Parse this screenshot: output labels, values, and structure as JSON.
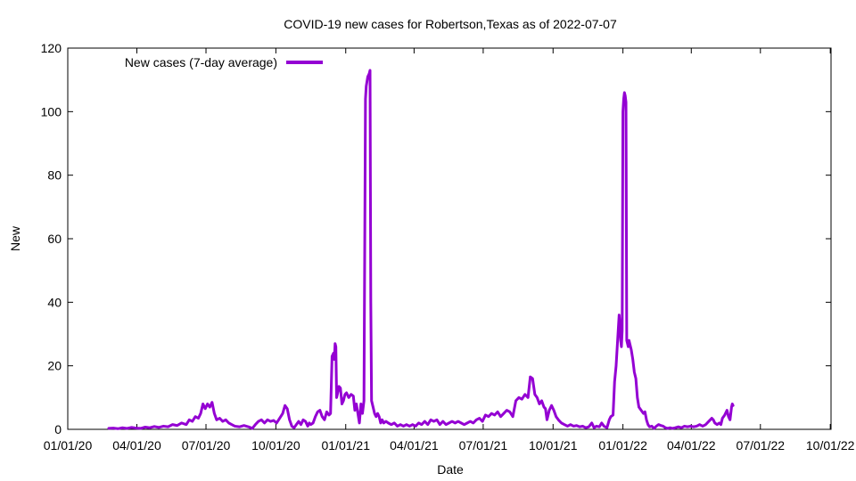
{
  "chart_data": {
    "type": "line",
    "title": "COVID-19 new cases for Robertson,Texas as of 2022-07-07",
    "xlabel": "Date",
    "ylabel": "New",
    "ylim": [
      0,
      120
    ],
    "yticks": [
      0,
      20,
      40,
      60,
      80,
      100,
      120
    ],
    "xlim_days": [
      0,
      1005
    ],
    "xticks": [
      {
        "day": 0,
        "label": "01/01/20"
      },
      {
        "day": 91,
        "label": "04/01/20"
      },
      {
        "day": 182,
        "label": "07/01/20"
      },
      {
        "day": 274,
        "label": "10/01/20"
      },
      {
        "day": 366,
        "label": "01/01/21"
      },
      {
        "day": 456,
        "label": "04/01/21"
      },
      {
        "day": 547,
        "label": "07/01/21"
      },
      {
        "day": 639,
        "label": "10/01/21"
      },
      {
        "day": 731,
        "label": "01/01/22"
      },
      {
        "day": 821,
        "label": "04/01/22"
      },
      {
        "day": 912,
        "label": "07/01/22"
      },
      {
        "day": 1004,
        "label": "10/01/22"
      }
    ],
    "legend": {
      "label": "New cases (7-day average)",
      "position": "top-left"
    },
    "series": [
      {
        "name": "New cases (7-day average)",
        "color": "#9400D3",
        "points": [
          [
            54,
            0.3
          ],
          [
            60,
            0.4
          ],
          [
            66,
            0.2
          ],
          [
            72,
            0.5
          ],
          [
            78,
            0.3
          ],
          [
            84,
            0.6
          ],
          [
            90,
            0.4
          ],
          [
            96,
            0.3
          ],
          [
            102,
            0.7
          ],
          [
            108,
            0.5
          ],
          [
            114,
            0.9
          ],
          [
            120,
            0.6
          ],
          [
            126,
            1.0
          ],
          [
            132,
            0.8
          ],
          [
            138,
            1.5
          ],
          [
            144,
            1.2
          ],
          [
            150,
            2.0
          ],
          [
            156,
            1.5
          ],
          [
            160,
            3.0
          ],
          [
            164,
            2.5
          ],
          [
            168,
            4.0
          ],
          [
            172,
            3.5
          ],
          [
            175,
            5.0
          ],
          [
            178,
            8.0
          ],
          [
            181,
            6.5
          ],
          [
            184,
            8.0
          ],
          [
            187,
            7.0
          ],
          [
            190,
            8.5
          ],
          [
            193,
            5.0
          ],
          [
            196,
            3.0
          ],
          [
            200,
            3.5
          ],
          [
            204,
            2.5
          ],
          [
            208,
            3.0
          ],
          [
            212,
            2.0
          ],
          [
            216,
            1.5
          ],
          [
            220,
            1.0
          ],
          [
            226,
            0.8
          ],
          [
            232,
            1.2
          ],
          [
            238,
            0.8
          ],
          [
            243,
            0.3
          ],
          [
            247,
            1.5
          ],
          [
            251,
            2.5
          ],
          [
            255,
            3.0
          ],
          [
            259,
            2.0
          ],
          [
            263,
            3.0
          ],
          [
            267,
            2.5
          ],
          [
            271,
            2.8
          ],
          [
            275,
            2.0
          ],
          [
            279,
            3.5
          ],
          [
            283,
            5.0
          ],
          [
            286,
            7.5
          ],
          [
            289,
            6.5
          ],
          [
            292,
            3.0
          ],
          [
            295,
            1.0
          ],
          [
            298,
            0.5
          ],
          [
            301,
            1.5
          ],
          [
            304,
            2.5
          ],
          [
            307,
            1.5
          ],
          [
            310,
            3.0
          ],
          [
            313,
            2.5
          ],
          [
            316,
            1.0
          ],
          [
            318,
            2.0
          ],
          [
            320,
            1.5
          ],
          [
            323,
            2.0
          ],
          [
            326,
            4.0
          ],
          [
            329,
            5.5
          ],
          [
            332,
            6.0
          ],
          [
            335,
            4.0
          ],
          [
            338,
            3.0
          ],
          [
            341,
            5.5
          ],
          [
            344,
            4.5
          ],
          [
            346,
            5.0
          ],
          [
            348,
            23.0
          ],
          [
            350,
            24.0
          ],
          [
            351,
            22.0
          ],
          [
            352,
            27.0
          ],
          [
            353,
            26.0
          ],
          [
            354,
            10.0
          ],
          [
            355,
            11.0
          ],
          [
            357,
            13.5
          ],
          [
            359,
            13.0
          ],
          [
            361,
            8.0
          ],
          [
            363,
            9.0
          ],
          [
            365,
            11.0
          ],
          [
            367,
            11.5
          ],
          [
            370,
            10.0
          ],
          [
            373,
            11.0
          ],
          [
            376,
            10.5
          ],
          [
            378,
            6.0
          ],
          [
            380,
            8.0
          ],
          [
            382,
            5.0
          ],
          [
            384,
            2.0
          ],
          [
            386,
            8.0
          ],
          [
            388,
            5.0
          ],
          [
            390,
            9.0
          ],
          [
            392,
            104.0
          ],
          [
            393,
            108.0
          ],
          [
            395,
            111.0
          ],
          [
            397,
            112.0
          ],
          [
            398,
            113.0
          ],
          [
            399,
            40.0
          ],
          [
            400,
            9.0
          ],
          [
            402,
            7.0
          ],
          [
            404,
            5.0
          ],
          [
            406,
            4.0
          ],
          [
            408,
            5.0
          ],
          [
            410,
            4.0
          ],
          [
            412,
            2.0
          ],
          [
            414,
            3.0
          ],
          [
            416,
            2.0
          ],
          [
            419,
            2.5
          ],
          [
            422,
            2.0
          ],
          [
            426,
            1.5
          ],
          [
            430,
            2.0
          ],
          [
            434,
            1.0
          ],
          [
            438,
            1.5
          ],
          [
            442,
            1.0
          ],
          [
            446,
            1.5
          ],
          [
            450,
            1.0
          ],
          [
            454,
            1.5
          ],
          [
            458,
            1.0
          ],
          [
            462,
            2.0
          ],
          [
            466,
            1.5
          ],
          [
            470,
            2.5
          ],
          [
            474,
            1.5
          ],
          [
            478,
            3.0
          ],
          [
            482,
            2.5
          ],
          [
            486,
            3.0
          ],
          [
            490,
            1.5
          ],
          [
            494,
            2.5
          ],
          [
            498,
            1.5
          ],
          [
            502,
            2.0
          ],
          [
            506,
            2.5
          ],
          [
            510,
            2.0
          ],
          [
            514,
            2.5
          ],
          [
            518,
            2.0
          ],
          [
            522,
            1.5
          ],
          [
            526,
            2.0
          ],
          [
            530,
            2.5
          ],
          [
            534,
            2.0
          ],
          [
            538,
            3.0
          ],
          [
            542,
            3.5
          ],
          [
            546,
            2.5
          ],
          [
            550,
            4.5
          ],
          [
            554,
            4.0
          ],
          [
            558,
            5.0
          ],
          [
            562,
            4.5
          ],
          [
            566,
            5.5
          ],
          [
            570,
            4.0
          ],
          [
            574,
            5.0
          ],
          [
            578,
            6.0
          ],
          [
            582,
            5.5
          ],
          [
            586,
            4.0
          ],
          [
            590,
            9.0
          ],
          [
            594,
            10.0
          ],
          [
            598,
            9.5
          ],
          [
            602,
            11.0
          ],
          [
            606,
            10.0
          ],
          [
            609,
            16.5
          ],
          [
            612,
            16.0
          ],
          [
            615,
            11.0
          ],
          [
            618,
            10.0
          ],
          [
            621,
            8.0
          ],
          [
            624,
            9.0
          ],
          [
            627,
            7.0
          ],
          [
            629,
            6.5
          ],
          [
            631,
            3.0
          ],
          [
            634,
            6.0
          ],
          [
            637,
            7.5
          ],
          [
            640,
            6.0
          ],
          [
            643,
            4.0
          ],
          [
            646,
            3.0
          ],
          [
            650,
            2.0
          ],
          [
            654,
            1.5
          ],
          [
            658,
            1.0
          ],
          [
            662,
            1.5
          ],
          [
            666,
            1.0
          ],
          [
            670,
            1.2
          ],
          [
            674,
            0.8
          ],
          [
            678,
            1.0
          ],
          [
            682,
            0.5
          ],
          [
            686,
            0.8
          ],
          [
            690,
            2.0
          ],
          [
            693,
            0.5
          ],
          [
            696,
            1.0
          ],
          [
            700,
            0.8
          ],
          [
            703,
            2.0
          ],
          [
            706,
            1.0
          ],
          [
            710,
            0.5
          ],
          [
            713,
            3.0
          ],
          [
            715,
            4.0
          ],
          [
            718,
            4.5
          ],
          [
            720,
            15.0
          ],
          [
            722,
            20.0
          ],
          [
            724,
            28.0
          ],
          [
            726,
            36.0
          ],
          [
            727,
            33.0
          ],
          [
            728,
            28.0
          ],
          [
            729,
            26.0
          ],
          [
            730,
            31.0
          ],
          [
            731,
            100.0
          ],
          [
            732,
            104.0
          ],
          [
            733,
            106.0
          ],
          [
            734,
            105.0
          ],
          [
            735,
            103.0
          ],
          [
            736,
            28.0
          ],
          [
            737,
            27.0
          ],
          [
            738,
            26.0
          ],
          [
            739,
            28.0
          ],
          [
            740,
            27.0
          ],
          [
            742,
            25.0
          ],
          [
            744,
            22.0
          ],
          [
            746,
            18.0
          ],
          [
            748,
            16.0
          ],
          [
            750,
            10.0
          ],
          [
            752,
            7.0
          ],
          [
            755,
            6.0
          ],
          [
            758,
            5.0
          ],
          [
            760,
            5.5
          ],
          [
            762,
            3.0
          ],
          [
            764,
            1.5
          ],
          [
            766,
            0.8
          ],
          [
            769,
            1.0
          ],
          [
            772,
            0.3
          ],
          [
            775,
            1.0
          ],
          [
            778,
            1.5
          ],
          [
            781,
            1.2
          ],
          [
            784,
            1.0
          ],
          [
            787,
            0.5
          ],
          [
            790,
            0.3
          ],
          [
            793,
            0.5
          ],
          [
            796,
            0.3
          ],
          [
            800,
            0.5
          ],
          [
            804,
            0.8
          ],
          [
            808,
            0.5
          ],
          [
            812,
            1.0
          ],
          [
            816,
            0.8
          ],
          [
            820,
            1.0
          ],
          [
            824,
            0.8
          ],
          [
            828,
            1.0
          ],
          [
            832,
            1.5
          ],
          [
            836,
            1.0
          ],
          [
            840,
            1.5
          ],
          [
            844,
            2.5
          ],
          [
            846,
            3.0
          ],
          [
            848,
            3.5
          ],
          [
            850,
            3.0
          ],
          [
            852,
            2.0
          ],
          [
            855,
            1.5
          ],
          [
            858,
            2.0
          ],
          [
            860,
            1.5
          ],
          [
            862,
            3.5
          ],
          [
            865,
            4.5
          ],
          [
            868,
            6.0
          ],
          [
            870,
            4.0
          ],
          [
            872,
            3.0
          ],
          [
            874,
            7.0
          ],
          [
            875,
            8.0
          ],
          [
            876,
            7.5
          ]
        ]
      }
    ]
  }
}
